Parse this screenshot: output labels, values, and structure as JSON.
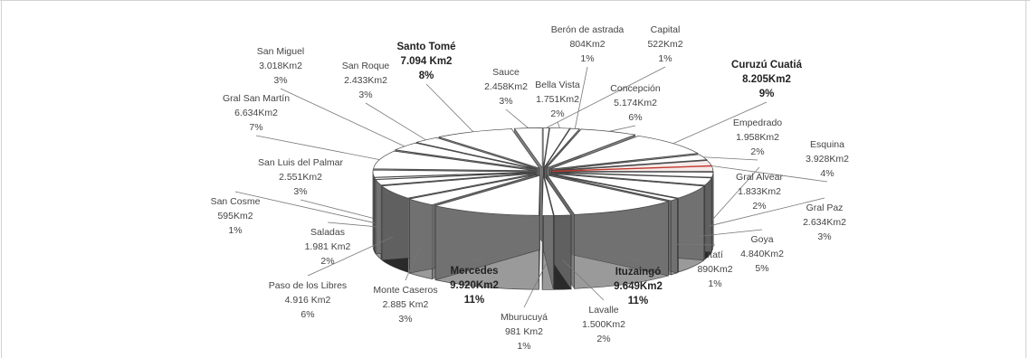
{
  "chart_data": {
    "type": "pie",
    "slices": [
      {
        "name": "Capital",
        "area": "522Km2",
        "pct": "1%",
        "value": 522
      },
      {
        "name": "Bella Vista",
        "area": "1.751Km2",
        "pct": "2%",
        "value": 1751
      },
      {
        "name": "Berón de astrada",
        "area": "804Km2",
        "pct": "1%",
        "value": 804
      },
      {
        "name": "Concepción",
        "area": "5.174Km2",
        "pct": "6%",
        "value": 5174
      },
      {
        "name": "Curuzú Cuatiá",
        "area": "8.205Km2",
        "pct": "9%",
        "value": 8205,
        "bold": true
      },
      {
        "name": "Empedrado",
        "area": "1.958Km2",
        "pct": "2%",
        "value": 1958
      },
      {
        "name": "Esquina",
        "area": "3.928Km2",
        "pct": "4%",
        "value": 3928
      },
      {
        "name": "Gral Alvear",
        "area": "1.833Km2",
        "pct": "2%",
        "value": 1833
      },
      {
        "name": "Gral Paz",
        "area": "2.634Km2",
        "pct": "3%",
        "value": 2634
      },
      {
        "name": "Goya",
        "area": "4.840Km2",
        "pct": "5%",
        "value": 4840
      },
      {
        "name": "Itatí",
        "area": "890Km2",
        "pct": "1%",
        "value": 890
      },
      {
        "name": "Ituzaingó",
        "area": "9.649Km2",
        "pct": "11%",
        "value": 9649,
        "bold": true
      },
      {
        "name": "Lavalle",
        "area": "1.500Km2",
        "pct": "2%",
        "value": 1500
      },
      {
        "name": "Mburucuyá",
        "area": "981 Km2",
        "pct": "1%",
        "value": 981
      },
      {
        "name": "Mercedes",
        "area": "9.920Km2",
        "pct": "11%",
        "value": 9920,
        "bold": true
      },
      {
        "name": "Monte Caseros",
        "area": "2.885 Km2",
        "pct": "3%",
        "value": 2885
      },
      {
        "name": "Paso de los Libres",
        "area": "4.916 Km2",
        "pct": "6%",
        "value": 4916
      },
      {
        "name": "Saladas",
        "area": "1.981 Km2",
        "pct": "2%",
        "value": 1981
      },
      {
        "name": "San Cosme",
        "area": "595Km2",
        "pct": "1%",
        "value": 595
      },
      {
        "name": "San Luis del Palmar",
        "area": "2.551Km2",
        "pct": "3%",
        "value": 2551
      },
      {
        "name": "Gral San Martín",
        "area": "6.634Km2",
        "pct": "7%",
        "value": 6634
      },
      {
        "name": "San Miguel",
        "area": "3.018Km2",
        "pct": "3%",
        "value": 3018
      },
      {
        "name": "San Roque",
        "area": "2.433Km2",
        "pct": "3%",
        "value": 2433
      },
      {
        "name": "Santo Tomé",
        "area": "7.094 Km2",
        "pct": "8%",
        "value": 7094,
        "bold": true
      },
      {
        "name": "Sauce",
        "area": "2.458Km2",
        "pct": "3%",
        "value": 2458
      }
    ],
    "colors": {
      "top": "#ffffff",
      "side": "#9a9a9a",
      "dark": "#2a2a2a",
      "accent": "#c0392b"
    }
  }
}
